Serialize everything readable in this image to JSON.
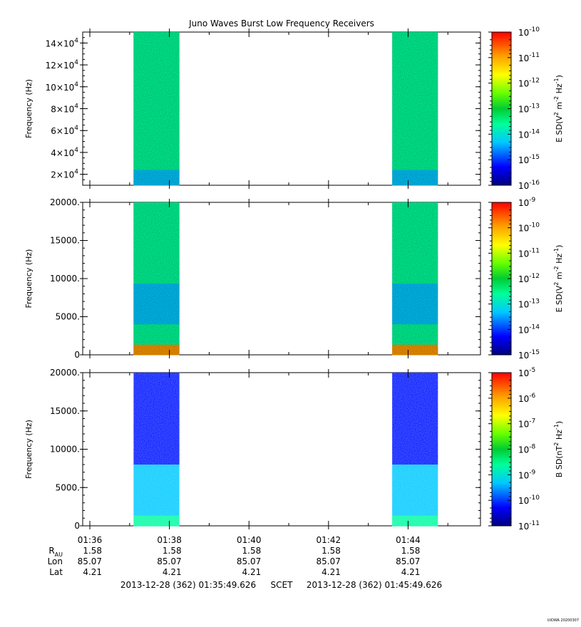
{
  "title": "Juno Waves Burst Low Frequency Receivers",
  "colors": {
    "colormap": [
      "#000080",
      "#0000ff",
      "#00c8ff",
      "#00ff99",
      "#00cc33",
      "#66ff00",
      "#ffff00",
      "#ff9900",
      "#ff0000"
    ]
  },
  "chart_data": [
    {
      "type": "heatmap",
      "panel": "top",
      "ylabel": "Frequency (Hz)",
      "yticks": [
        {
          "v": 20000,
          "base": "2×10",
          "exp": "4"
        },
        {
          "v": 40000,
          "base": "4×10",
          "exp": "4"
        },
        {
          "v": 60000,
          "base": "6×10",
          "exp": "4"
        },
        {
          "v": 80000,
          "base": "8×10",
          "exp": "4"
        },
        {
          "v": 100000,
          "base": "10×10",
          "exp": "4"
        },
        {
          "v": 120000,
          "base": "12×10",
          "exp": "4"
        },
        {
          "v": 140000,
          "base": "14×10",
          "exp": "4"
        }
      ],
      "ylim": [
        10000,
        150000
      ],
      "bursts_minutes": [
        [
          37.1,
          38.25
        ],
        [
          43.6,
          44.75
        ]
      ],
      "cbar_label_parts": [
        "E SD(V",
        "2",
        " m",
        "-2",
        " Hz",
        "-1",
        ")"
      ],
      "cbar_exponents": [
        "-10",
        "-11",
        "-12",
        "-13",
        "-14",
        "-15",
        "-16"
      ],
      "color_profile": [
        3,
        3,
        3,
        3,
        3,
        3,
        3,
        3,
        2.5,
        2
      ]
    },
    {
      "type": "heatmap",
      "panel": "middle",
      "ylabel": "Frequency (Hz)",
      "yticks": [
        {
          "v": 0,
          "label": "0"
        },
        {
          "v": 5000,
          "label": "5000."
        },
        {
          "v": 10000,
          "label": "10000."
        },
        {
          "v": 15000,
          "label": "15000."
        },
        {
          "v": 20000,
          "label": "20000."
        }
      ],
      "ylim": [
        0,
        20000
      ],
      "bursts_minutes": [
        [
          37.1,
          38.25
        ],
        [
          43.6,
          44.75
        ]
      ],
      "cbar_label_parts": [
        "E SD(V",
        "2",
        " m",
        "-2",
        " Hz",
        "-1",
        ")"
      ],
      "cbar_exponents": [
        "-9",
        "-10",
        "-11",
        "-12",
        "-13",
        "-14",
        "-15"
      ],
      "color_profile": [
        2.6,
        2.6,
        2.6,
        2.6,
        2.6,
        2.5,
        2.5,
        2.5,
        2.4,
        2.3,
        2.3,
        2.2,
        2.5,
        3,
        6.5
      ]
    },
    {
      "type": "heatmap",
      "panel": "bottom",
      "ylabel": "Frequency (Hz)",
      "yticks": [
        {
          "v": 0,
          "label": "0"
        },
        {
          "v": 5000,
          "label": "5000."
        },
        {
          "v": 10000,
          "label": "10000."
        },
        {
          "v": 15000,
          "label": "15000."
        },
        {
          "v": 20000,
          "label": "20000."
        }
      ],
      "ylim": [
        0,
        20000
      ],
      "bursts_minutes": [
        [
          37.1,
          38.25
        ],
        [
          43.6,
          44.75
        ]
      ],
      "cbar_label_parts": [
        "B SD(nT",
        "2",
        " Hz",
        "-1",
        ")"
      ],
      "cbar_exponents": [
        "-5",
        "-6",
        "-7",
        "-8",
        "-9",
        "-10",
        "-11"
      ],
      "color_profile": [
        1,
        1,
        1,
        1,
        1,
        1,
        1.1,
        1.2,
        1.3,
        1.5,
        1.7,
        1.9,
        2.1,
        2.4,
        3.1
      ]
    }
  ],
  "xaxis": {
    "xlim_minutes": [
      35.82,
      45.82
    ],
    "ticks": [
      {
        "m": 36,
        "label": "01:36"
      },
      {
        "m": 38,
        "label": "01:38"
      },
      {
        "m": 40,
        "label": "01:40"
      },
      {
        "m": 42,
        "label": "01:42"
      },
      {
        "m": 44,
        "label": "01:44"
      }
    ]
  },
  "ephemeris": {
    "rau_label": "R",
    "rau_sub": "AU",
    "lon_label": "Lon",
    "lat_label": "Lat",
    "rau": [
      "1.58",
      "1.58",
      "1.58",
      "1.58",
      "1.58"
    ],
    "lon": [
      "85.07",
      "85.07",
      "85.07",
      "85.07",
      "85.07"
    ],
    "lat": [
      "4.21",
      "4.21",
      "4.21",
      "4.21",
      "4.21"
    ]
  },
  "footer": {
    "start": "2013-12-28 (362) 01:35:49.626",
    "frame": "SCET",
    "end": "2013-12-28 (362) 01:45:49.626"
  },
  "stamp": "UIOWA 20200307"
}
